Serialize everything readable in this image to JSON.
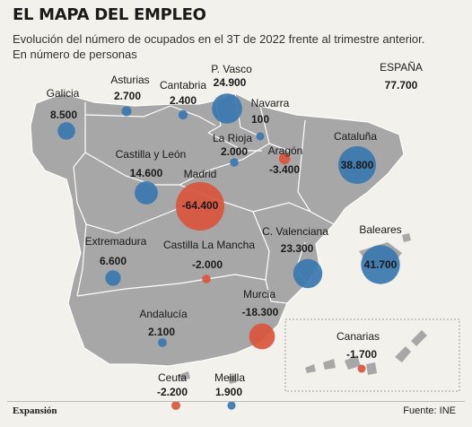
{
  "header": {
    "title": "EL MAPA DEL EMPLEO",
    "subtitle_line1": "Evolución del número de ocupados en el 3T de 2022 frente al trimestre anterior.",
    "subtitle_line2": "En número de personas"
  },
  "colors": {
    "positive": "#3a78b0",
    "negative": "#d9553c",
    "land": "#a7a7a7",
    "border": "#ffffff"
  },
  "total": {
    "label": "ESPAÑA",
    "value": "77.700"
  },
  "regions": [
    {
      "id": "galicia",
      "label": "Galicia",
      "value": "8.500",
      "num": 8500
    },
    {
      "id": "asturias",
      "label": "Asturias",
      "value": "2.700",
      "num": 2700
    },
    {
      "id": "cantabria",
      "label": "Cantabria",
      "value": "2.400",
      "num": 2400
    },
    {
      "id": "pvasco",
      "label": "P. Vasco",
      "value": "24.900",
      "num": 24900
    },
    {
      "id": "navarra",
      "label": "Navarra",
      "value": "100",
      "num": 100
    },
    {
      "id": "larioja",
      "label": "La Rioja",
      "value": "2.000",
      "num": 2000
    },
    {
      "id": "aragon",
      "label": "Aragón",
      "value": "-3.400",
      "num": -3400
    },
    {
      "id": "cataluna",
      "label": "Cataluña",
      "value": "38.800",
      "num": 38800
    },
    {
      "id": "cyl",
      "label": "Castilla y León",
      "value": "14.600",
      "num": 14600
    },
    {
      "id": "madrid",
      "label": "Madrid",
      "value": "-64.400",
      "num": -64400
    },
    {
      "id": "extremadura",
      "label": "Extremadura",
      "value": "6.600",
      "num": 6600
    },
    {
      "id": "clm",
      "label": "Castilla La Mancha",
      "value": "-2.000",
      "num": -2000
    },
    {
      "id": "cvalenciana",
      "label": "C. Valenciana",
      "value": "23.300",
      "num": 23300
    },
    {
      "id": "baleares",
      "label": "Baleares",
      "value": "41.700",
      "num": 41700
    },
    {
      "id": "murcia",
      "label": "Murcia",
      "value": "-18.300",
      "num": -18300
    },
    {
      "id": "andalucia",
      "label": "Andalucía",
      "value": "2.100",
      "num": 2100
    },
    {
      "id": "canarias",
      "label": "Canarias",
      "value": "-1.700",
      "num": -1700
    },
    {
      "id": "ceuta",
      "label": "Ceuta",
      "value": "-2.200",
      "num": -2200
    },
    {
      "id": "melilla",
      "label": "Melilla",
      "value": "1.900",
      "num": 1900
    }
  ],
  "footer": {
    "source_brand": "Expansión",
    "source": "Fuente: INE"
  }
}
